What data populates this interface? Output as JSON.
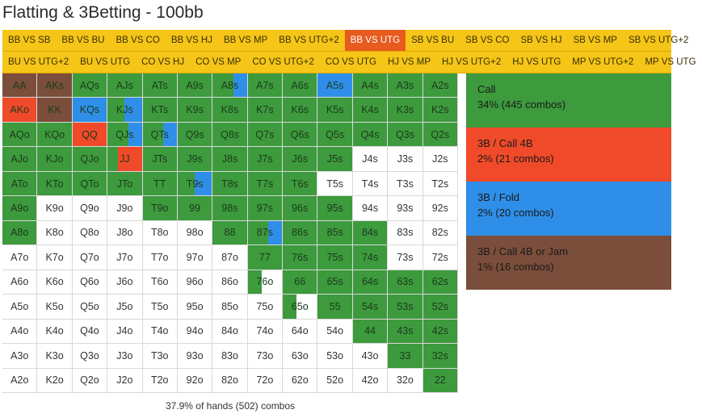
{
  "title": "Flatting & 3Betting - 100bb",
  "tabs_row1": [
    "BB VS SB",
    "BB VS BU",
    "BB VS CO",
    "BB VS HJ",
    "BB VS MP",
    "BB VS UTG+2",
    "BB VS UTG",
    "SB VS BU",
    "SB VS CO",
    "SB VS HJ",
    "SB VS MP",
    "SB VS UTG+2"
  ],
  "tabs_row2": [
    "BU VS UTG+2",
    "BU VS UTG",
    "CO VS HJ",
    "CO VS MP",
    "CO VS UTG+2",
    "CO VS UTG",
    "HJ VS MP",
    "HJ VS UTG+2",
    "HJ VS UTG",
    "MP VS UTG+2",
    "MP VS UTG"
  ],
  "active_tab": "BB VS UTG",
  "colors": {
    "call": "#3d9a3d",
    "threebet_call": "#f04a2a",
    "threebet_fold": "#2f8fe8",
    "threebet_jam": "#7a4e3a",
    "tab_bg": "#f5c518",
    "tab_active": "#e85a1e",
    "empty": "#ffffff"
  },
  "legend": [
    {
      "key": "call",
      "name": "Call",
      "pct": "34% (445 combos)"
    },
    {
      "key": "threebet_call",
      "name": "3B / Call 4B",
      "pct": "2% (21 combos)"
    },
    {
      "key": "threebet_fold",
      "name": "3B / Fold",
      "pct": "2% (20 combos)"
    },
    {
      "key": "threebet_jam",
      "name": "3B / Call 4B or Jam",
      "pct": "1% (16 combos)"
    }
  ],
  "grid": [
    [
      {
        "label": "AA",
        "mix": {
          "threebet_jam": 1
        }
      },
      {
        "label": "AKs",
        "mix": {
          "threebet_jam": 1
        }
      },
      {
        "label": "AQs",
        "mix": {
          "call": 1
        }
      },
      {
        "label": "AJs",
        "mix": {
          "call": 1
        }
      },
      {
        "label": "ATs",
        "mix": {
          "call": 1
        }
      },
      {
        "label": "A9s",
        "mix": {
          "call": 1
        }
      },
      {
        "label": "A8s",
        "mix": {
          "call": 0.6,
          "threebet_fold": 0.4
        }
      },
      {
        "label": "A7s",
        "mix": {
          "call": 1
        }
      },
      {
        "label": "A6s",
        "mix": {
          "call": 1
        }
      },
      {
        "label": "A5s",
        "mix": {
          "threebet_fold": 1
        }
      },
      {
        "label": "A4s",
        "mix": {
          "call": 1
        }
      },
      {
        "label": "A3s",
        "mix": {
          "call": 1
        }
      },
      {
        "label": "A2s",
        "mix": {
          "call": 1
        }
      }
    ],
    [
      {
        "label": "AKo",
        "mix": {
          "threebet_call": 1
        }
      },
      {
        "label": "KK",
        "mix": {
          "threebet_jam": 1
        }
      },
      {
        "label": "KQs",
        "mix": {
          "threebet_fold": 1
        }
      },
      {
        "label": "KJs",
        "mix": {
          "call": 0.5,
          "threebet_fold": 0.5
        }
      },
      {
        "label": "KTs",
        "mix": {
          "call": 1
        }
      },
      {
        "label": "K9s",
        "mix": {
          "call": 1
        }
      },
      {
        "label": "K8s",
        "mix": {
          "call": 1
        }
      },
      {
        "label": "K7s",
        "mix": {
          "call": 1
        }
      },
      {
        "label": "K6s",
        "mix": {
          "call": 1
        }
      },
      {
        "label": "K5s",
        "mix": {
          "call": 1
        }
      },
      {
        "label": "K4s",
        "mix": {
          "call": 1
        }
      },
      {
        "label": "K3s",
        "mix": {
          "call": 1
        }
      },
      {
        "label": "K2s",
        "mix": {
          "call": 1
        }
      }
    ],
    [
      {
        "label": "AQo",
        "mix": {
          "call": 1
        }
      },
      {
        "label": "KQo",
        "mix": {
          "call": 1
        }
      },
      {
        "label": "QQ",
        "mix": {
          "threebet_call": 1
        }
      },
      {
        "label": "QJs",
        "mix": {
          "call": 0.6,
          "threebet_fold": 0.4
        }
      },
      {
        "label": "QTs",
        "mix": {
          "call": 0.6,
          "threebet_fold": 0.4
        }
      },
      {
        "label": "Q9s",
        "mix": {
          "call": 1
        }
      },
      {
        "label": "Q8s",
        "mix": {
          "call": 1
        }
      },
      {
        "label": "Q7s",
        "mix": {
          "call": 1
        }
      },
      {
        "label": "Q6s",
        "mix": {
          "call": 1
        }
      },
      {
        "label": "Q5s",
        "mix": {
          "call": 1
        }
      },
      {
        "label": "Q4s",
        "mix": {
          "call": 1
        }
      },
      {
        "label": "Q3s",
        "mix": {
          "call": 1
        }
      },
      {
        "label": "Q2s",
        "mix": {
          "call": 1
        }
      }
    ],
    [
      {
        "label": "AJo",
        "mix": {
          "call": 1
        }
      },
      {
        "label": "KJo",
        "mix": {
          "call": 1
        }
      },
      {
        "label": "QJo",
        "mix": {
          "call": 1
        }
      },
      {
        "label": "JJ",
        "mix": {
          "call": 0.3,
          "threebet_call": 0.7
        }
      },
      {
        "label": "JTs",
        "mix": {
          "call": 1
        }
      },
      {
        "label": "J9s",
        "mix": {
          "call": 1
        }
      },
      {
        "label": "J8s",
        "mix": {
          "call": 1
        }
      },
      {
        "label": "J7s",
        "mix": {
          "call": 1
        }
      },
      {
        "label": "J6s",
        "mix": {
          "call": 1
        }
      },
      {
        "label": "J5s",
        "mix": {
          "call": 1
        }
      },
      {
        "label": "J4s",
        "mix": {}
      },
      {
        "label": "J3s",
        "mix": {}
      },
      {
        "label": "J2s",
        "mix": {}
      }
    ],
    [
      {
        "label": "ATo",
        "mix": {
          "call": 1
        }
      },
      {
        "label": "KTo",
        "mix": {
          "call": 1
        }
      },
      {
        "label": "QTo",
        "mix": {
          "call": 1
        }
      },
      {
        "label": "JTo",
        "mix": {
          "call": 1
        }
      },
      {
        "label": "TT",
        "mix": {
          "call": 1
        }
      },
      {
        "label": "T9s",
        "mix": {
          "call": 0.5,
          "threebet_fold": 0.5
        }
      },
      {
        "label": "T8s",
        "mix": {
          "call": 1
        }
      },
      {
        "label": "T7s",
        "mix": {
          "call": 1
        }
      },
      {
        "label": "T6s",
        "mix": {
          "call": 1
        }
      },
      {
        "label": "T5s",
        "mix": {}
      },
      {
        "label": "T4s",
        "mix": {}
      },
      {
        "label": "T3s",
        "mix": {}
      },
      {
        "label": "T2s",
        "mix": {}
      }
    ],
    [
      {
        "label": "A9o",
        "mix": {
          "call": 1
        }
      },
      {
        "label": "K9o",
        "mix": {}
      },
      {
        "label": "Q9o",
        "mix": {}
      },
      {
        "label": "J9o",
        "mix": {}
      },
      {
        "label": "T9o",
        "mix": {
          "call": 1
        }
      },
      {
        "label": "99",
        "mix": {
          "call": 1
        }
      },
      {
        "label": "98s",
        "mix": {
          "call": 1
        }
      },
      {
        "label": "97s",
        "mix": {
          "call": 1
        }
      },
      {
        "label": "96s",
        "mix": {
          "call": 1
        }
      },
      {
        "label": "95s",
        "mix": {
          "call": 1
        }
      },
      {
        "label": "94s",
        "mix": {}
      },
      {
        "label": "93s",
        "mix": {}
      },
      {
        "label": "92s",
        "mix": {}
      }
    ],
    [
      {
        "label": "A8o",
        "mix": {
          "call": 1
        }
      },
      {
        "label": "K8o",
        "mix": {}
      },
      {
        "label": "Q8o",
        "mix": {}
      },
      {
        "label": "J8o",
        "mix": {}
      },
      {
        "label": "T8o",
        "mix": {}
      },
      {
        "label": "98o",
        "mix": {}
      },
      {
        "label": "88",
        "mix": {
          "call": 1
        }
      },
      {
        "label": "87s",
        "mix": {
          "call": 0.6,
          "threebet_fold": 0.4
        }
      },
      {
        "label": "86s",
        "mix": {
          "call": 1
        }
      },
      {
        "label": "85s",
        "mix": {
          "call": 1
        }
      },
      {
        "label": "84s",
        "mix": {
          "call": 1
        }
      },
      {
        "label": "83s",
        "mix": {}
      },
      {
        "label": "82s",
        "mix": {}
      }
    ],
    [
      {
        "label": "A7o",
        "mix": {}
      },
      {
        "label": "K7o",
        "mix": {}
      },
      {
        "label": "Q7o",
        "mix": {}
      },
      {
        "label": "J7o",
        "mix": {}
      },
      {
        "label": "T7o",
        "mix": {}
      },
      {
        "label": "97o",
        "mix": {}
      },
      {
        "label": "87o",
        "mix": {}
      },
      {
        "label": "77",
        "mix": {
          "call": 1
        }
      },
      {
        "label": "76s",
        "mix": {
          "call": 1
        }
      },
      {
        "label": "75s",
        "mix": {
          "call": 1
        }
      },
      {
        "label": "74s",
        "mix": {
          "call": 1
        }
      },
      {
        "label": "73s",
        "mix": {}
      },
      {
        "label": "72s",
        "mix": {}
      }
    ],
    [
      {
        "label": "A6o",
        "mix": {}
      },
      {
        "label": "K6o",
        "mix": {}
      },
      {
        "label": "Q6o",
        "mix": {}
      },
      {
        "label": "J6o",
        "mix": {}
      },
      {
        "label": "T6o",
        "mix": {}
      },
      {
        "label": "96o",
        "mix": {}
      },
      {
        "label": "86o",
        "mix": {}
      },
      {
        "label": "76o",
        "mix": {
          "call": 0.4
        }
      },
      {
        "label": "66",
        "mix": {
          "call": 1
        }
      },
      {
        "label": "65s",
        "mix": {
          "call": 1
        }
      },
      {
        "label": "64s",
        "mix": {
          "call": 1
        }
      },
      {
        "label": "63s",
        "mix": {
          "call": 1
        }
      },
      {
        "label": "62s",
        "mix": {
          "call": 1
        }
      }
    ],
    [
      {
        "label": "A5o",
        "mix": {}
      },
      {
        "label": "K5o",
        "mix": {}
      },
      {
        "label": "Q5o",
        "mix": {}
      },
      {
        "label": "J5o",
        "mix": {}
      },
      {
        "label": "T5o",
        "mix": {}
      },
      {
        "label": "95o",
        "mix": {}
      },
      {
        "label": "85o",
        "mix": {}
      },
      {
        "label": "75o",
        "mix": {}
      },
      {
        "label": "65o",
        "mix": {
          "call": 0.4
        }
      },
      {
        "label": "55",
        "mix": {
          "call": 1
        }
      },
      {
        "label": "54s",
        "mix": {
          "call": 1
        }
      },
      {
        "label": "53s",
        "mix": {
          "call": 1
        }
      },
      {
        "label": "52s",
        "mix": {
          "call": 1
        }
      }
    ],
    [
      {
        "label": "A4o",
        "mix": {}
      },
      {
        "label": "K4o",
        "mix": {}
      },
      {
        "label": "Q4o",
        "mix": {}
      },
      {
        "label": "J4o",
        "mix": {}
      },
      {
        "label": "T4o",
        "mix": {}
      },
      {
        "label": "94o",
        "mix": {}
      },
      {
        "label": "84o",
        "mix": {}
      },
      {
        "label": "74o",
        "mix": {}
      },
      {
        "label": "64o",
        "mix": {}
      },
      {
        "label": "54o",
        "mix": {}
      },
      {
        "label": "44",
        "mix": {
          "call": 1
        }
      },
      {
        "label": "43s",
        "mix": {
          "call": 1
        }
      },
      {
        "label": "42s",
        "mix": {
          "call": 1
        }
      }
    ],
    [
      {
        "label": "A3o",
        "mix": {}
      },
      {
        "label": "K3o",
        "mix": {}
      },
      {
        "label": "Q3o",
        "mix": {}
      },
      {
        "label": "J3o",
        "mix": {}
      },
      {
        "label": "T3o",
        "mix": {}
      },
      {
        "label": "93o",
        "mix": {}
      },
      {
        "label": "83o",
        "mix": {}
      },
      {
        "label": "73o",
        "mix": {}
      },
      {
        "label": "63o",
        "mix": {}
      },
      {
        "label": "53o",
        "mix": {}
      },
      {
        "label": "43o",
        "mix": {}
      },
      {
        "label": "33",
        "mix": {
          "call": 1
        }
      },
      {
        "label": "32s",
        "mix": {
          "call": 1
        }
      }
    ],
    [
      {
        "label": "A2o",
        "mix": {}
      },
      {
        "label": "K2o",
        "mix": {}
      },
      {
        "label": "Q2o",
        "mix": {}
      },
      {
        "label": "J2o",
        "mix": {}
      },
      {
        "label": "T2o",
        "mix": {}
      },
      {
        "label": "92o",
        "mix": {}
      },
      {
        "label": "82o",
        "mix": {}
      },
      {
        "label": "72o",
        "mix": {}
      },
      {
        "label": "62o",
        "mix": {}
      },
      {
        "label": "52o",
        "mix": {}
      },
      {
        "label": "42o",
        "mix": {}
      },
      {
        "label": "32o",
        "mix": {}
      },
      {
        "label": "22",
        "mix": {
          "call": 1
        }
      }
    ]
  ],
  "footer": "37.9% of hands (502) combos"
}
